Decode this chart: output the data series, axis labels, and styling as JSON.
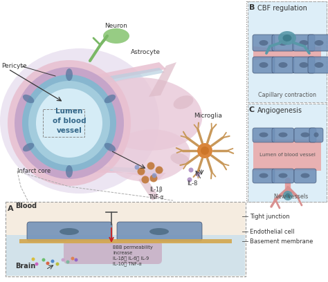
{
  "bg_color": "#ffffff",
  "labels": {
    "neuron": "Neuron",
    "astrocyte": "Astrocyte",
    "pericyte": "Pericyte",
    "lumen": "Lumen\nof blood\nvessel",
    "infarct": "Infarct core",
    "microglia": "Microglia",
    "il1b_tnfa": "IL-1β\nTNF-α",
    "il8": "IL-8",
    "blood": "Blood",
    "brain": "Brain",
    "tight_junction": "Tight junction",
    "endothelial_cell": "Endothelial cell",
    "basement_membrane": "Basement membrane",
    "bbb": "BBB permeability\nincrease\nIL-1β， IL-6， IL-9\nIL-10， TNF-α",
    "cbf": "CBF regulation",
    "capillary": "Capillary contraction",
    "angiogenesis": "Angiogenesis",
    "lumen_vessel": "Lumen of blood vessel",
    "new_vessels": "New vessels"
  },
  "colors": {
    "bg_purple": "#ddd0e8",
    "outer_pink": "#e8c0d0",
    "pericyte_ring": "#c0a0c8",
    "teal_ring": "#80b8d0",
    "inner_teal": "#a8d0e0",
    "lumen_white": "#d8eef8",
    "vessel_dark_spots": "#5878a0",
    "vessel_tube_pink": "#e0c8d8",
    "vessel_tube_blue": "#b8d0e0",
    "astrocyte_pink": "#e8c8d8",
    "astrocyte_arm": "#ddbbc8",
    "neuron_green": "#8ec87a",
    "neuron_stem": "#7ab866",
    "microglia_tan": "#c8985a",
    "microglia_center": "#d88030",
    "cytokine_brown1": "#c07838",
    "cytokine_brown2": "#a86030",
    "cytokine_blue": "#8898c8",
    "cytokine_purple": "#a888c0",
    "panel_bg": "#ddeef8",
    "cap_lumen_pink": "#eaabab",
    "cap_cell_blue": "#7090b8",
    "cap_cell_dark": "#506888",
    "cap_teal": "#5898a8",
    "new_vessel_pink": "#e8a0a0",
    "new_vessel_branch": "#d89090",
    "endo_blue": "#7090b8",
    "endo_dark": "#4a6880",
    "basement_gold": "#d4a850",
    "blood_bg": "#f5ece0",
    "brain_bg": "#c8dde8",
    "pericyte_brain": "#c8a8c0"
  }
}
